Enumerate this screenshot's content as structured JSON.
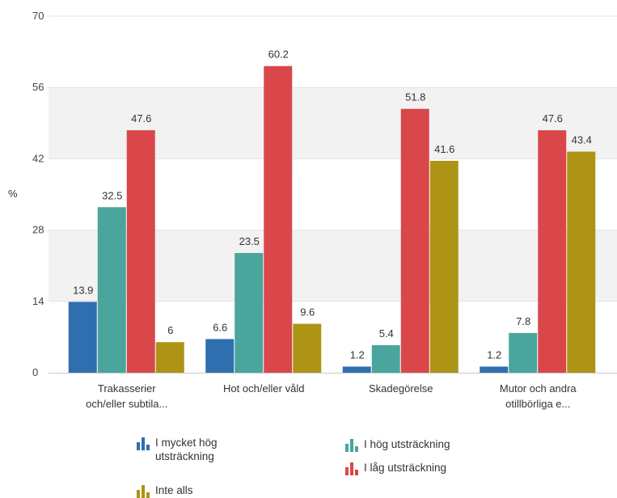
{
  "chart_data": {
    "type": "bar",
    "ylabel": "%",
    "ylim": [
      0,
      70
    ],
    "yticks": [
      0,
      14,
      28,
      42,
      56,
      70
    ],
    "grid": true,
    "categories": [
      [
        "Trakasserier",
        "och/eller subtila..."
      ],
      [
        "Hot och/eller våld"
      ],
      [
        "Skadegörelse"
      ],
      [
        "Mutor och andra",
        "otillbörliga e..."
      ]
    ],
    "series": [
      {
        "name": "I mycket hög utsträckning",
        "color": "#2f6fb0",
        "values": [
          13.9,
          6.6,
          1.2,
          1.2
        ]
      },
      {
        "name": "I hög utsträckning",
        "color": "#4aa59c",
        "values": [
          32.5,
          23.5,
          5.4,
          7.8
        ]
      },
      {
        "name": "I låg utsträckning",
        "color": "#d9474b",
        "values": [
          47.6,
          60.2,
          51.8,
          47.6
        ]
      },
      {
        "name": "Inte alls",
        "color": "#ad9414",
        "values": [
          6,
          9.6,
          41.6,
          43.4
        ]
      }
    ],
    "legend": {
      "placement": "bottom",
      "lines": [
        [
          "I mycket hög",
          "utsträckning"
        ],
        [
          "I hög utsträckning"
        ],
        [
          "I låg utsträckning"
        ],
        [
          "Inte alls"
        ]
      ]
    }
  }
}
